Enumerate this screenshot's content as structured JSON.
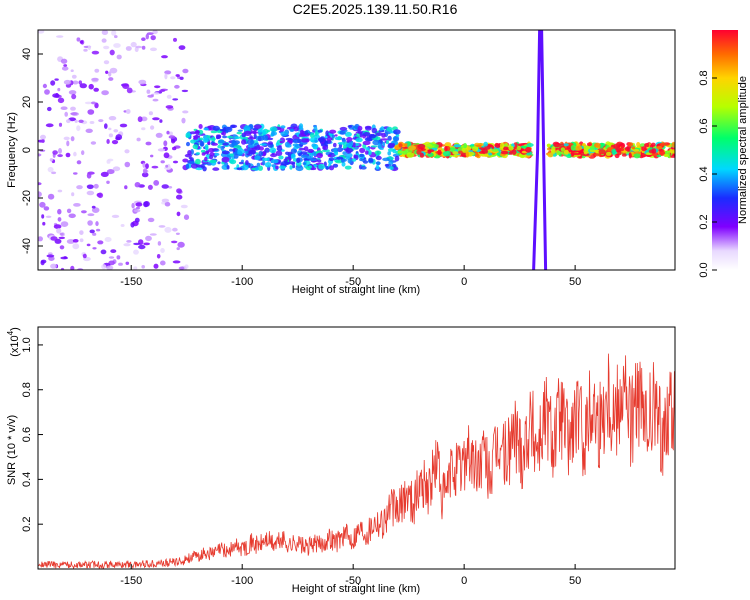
{
  "title": "C2E5.2025.139.11.50.R16",
  "colors": {
    "axis": "#000000",
    "snr_line": "#e63a2e",
    "background": "#ffffff"
  },
  "chart_data": [
    {
      "type": "heatmap",
      "name": "spectrogram",
      "xlabel": "Height of straight line (km)",
      "ylabel": "Frequency (Hz)",
      "xlim": [
        -192,
        95
      ],
      "ylim": [
        -50,
        50
      ],
      "xticks": [
        -150,
        -100,
        -50,
        0,
        50
      ],
      "yticks": [
        -40,
        -20,
        0,
        20,
        40
      ],
      "colorbar": {
        "label": "Normalized spectral amplitude",
        "range": [
          0.0,
          1.0
        ],
        "ticks": [
          0.0,
          0.2,
          0.4,
          0.6,
          0.8
        ],
        "colormap": "rainbow (white-violet-blue-cyan-green-yellow-red)"
      },
      "features": [
        {
          "x_range": [
            -192,
            -125
          ],
          "freq_range": [
            -50,
            50
          ],
          "amplitude": 0.15,
          "description": "broadband noise"
        },
        {
          "x_range": [
            -125,
            -30
          ],
          "freq_range": [
            -8,
            10
          ],
          "amplitude": 0.35,
          "description": "scattered band near 0 Hz"
        },
        {
          "x_range": [
            -30,
            30
          ],
          "freq_center": 0,
          "amplitude": 0.8,
          "description": "narrow line near 0 Hz"
        },
        {
          "x_range": [
            32,
            36
          ],
          "freq_range": [
            -50,
            50
          ],
          "amplitude": 0.2,
          "description": "vertical swing"
        },
        {
          "x_range": [
            38,
            95
          ],
          "freq_center": 0,
          "amplitude": 0.85,
          "description": "narrow line near 0 Hz"
        }
      ]
    },
    {
      "type": "line",
      "name": "snr",
      "xlabel": "Height of straight line (km)",
      "ylabel": "SNR (10 * v/v)",
      "yscale_label": "(x10",
      "yscale_exp": "4",
      "xlim": [
        -192,
        95
      ],
      "ylim": [
        0,
        1.08
      ],
      "xticks": [
        -150,
        -100,
        -50,
        0,
        50
      ],
      "yticks": [
        0.2,
        0.4,
        0.6,
        0.8,
        1.0
      ],
      "series": [
        {
          "x": [
            -190,
            -170,
            -150,
            -130,
            -120,
            -110,
            -100,
            -90,
            -80,
            -70,
            -60,
            -50,
            -40,
            -30,
            -20,
            -15,
            -12,
            -10,
            0,
            10,
            20,
            30,
            40,
            50,
            60,
            70,
            80,
            90,
            95
          ],
          "y": [
            0.02,
            0.02,
            0.02,
            0.03,
            0.06,
            0.08,
            0.1,
            0.12,
            0.12,
            0.1,
            0.13,
            0.15,
            0.2,
            0.28,
            0.35,
            0.4,
            0.45,
            0.33,
            0.5,
            0.45,
            0.55,
            0.6,
            0.65,
            0.62,
            0.7,
            0.78,
            0.68,
            0.65,
            0.7
          ]
        }
      ]
    }
  ]
}
